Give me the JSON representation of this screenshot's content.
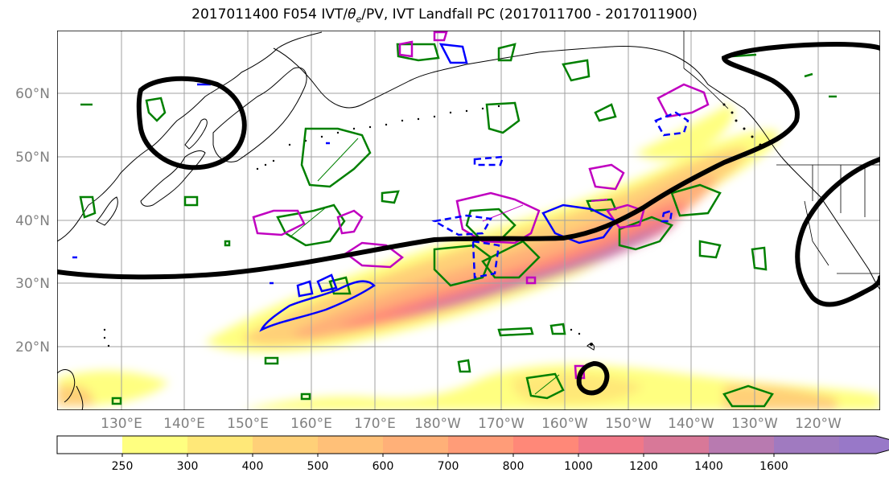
{
  "title_main": "2017011400 F054 IVT/",
  "title_theta": "θ",
  "title_sub_e": "e",
  "title_rest": "/PV, IVT Landfall PC (2017011700 - 2017011900)",
  "lat_labels": [
    "60°N",
    "50°N",
    "40°N",
    "30°N",
    "20°N"
  ],
  "lon_labels": [
    "130°E",
    "140°E",
    "150°E",
    "160°E",
    "170°E",
    "180°W",
    "170°W",
    "160°W",
    "150°W",
    "140°W",
    "130°W",
    "120°W"
  ],
  "colorbar": {
    "labels": [
      "250",
      "300",
      "400",
      "500",
      "600",
      "700",
      "800",
      "1000",
      "1200",
      "1400",
      "1600"
    ],
    "colors": [
      "#ffffff",
      "#ffff80",
      "#ffe878",
      "#ffd078",
      "#ffc078",
      "#ffb078",
      "#ff9c78",
      "#ff8878",
      "#f07888",
      "#d87898",
      "#b87ab0",
      "#a07ac0",
      "#9878c8"
    ]
  },
  "contour_colors": {
    "pc": "#000000",
    "theta_e": "#008000",
    "pv_pos": "#c000c0",
    "pv_neg": "#0000ff"
  }
}
